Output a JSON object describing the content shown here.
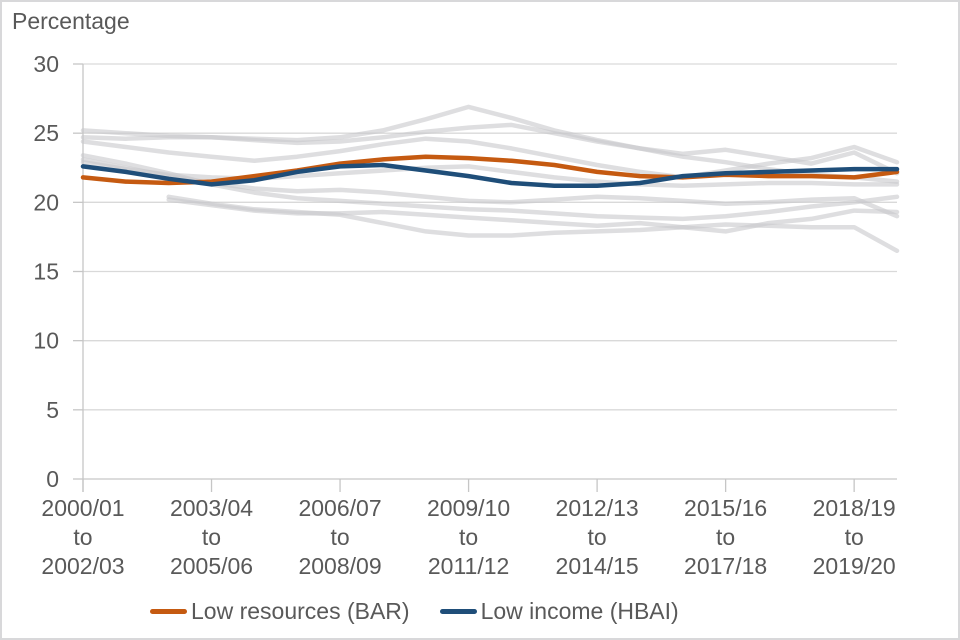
{
  "page": {
    "background_color": "#ffffff",
    "border_color": "#d8d8da"
  },
  "chart_data": {
    "type": "line",
    "title": "Percentage",
    "ylabel": "Percentage",
    "xlabel": "",
    "ylim": [
      0,
      30
    ],
    "yticks": [
      0,
      5,
      10,
      15,
      20,
      25,
      30
    ],
    "grid": "horizontal",
    "axis_color": "#c6c6c6",
    "gridline_color": "#d9d9d9",
    "label_color": "#595959",
    "n_points": 20,
    "x_tick_indices": [
      0,
      3,
      6,
      9,
      12,
      15,
      18
    ],
    "x_tick_labels": [
      [
        "2000/01",
        "to",
        "2002/03"
      ],
      [
        "2003/04",
        "to",
        "2005/06"
      ],
      [
        "2006/07",
        "to",
        "2008/09"
      ],
      [
        "2009/10",
        "to",
        "2011/12"
      ],
      [
        "2012/13",
        "to",
        "2014/15"
      ],
      [
        "2015/16",
        "to",
        "2017/18"
      ],
      [
        "2018/19",
        "to",
        "2019/20"
      ]
    ],
    "series": [
      {
        "name": "background-series-1",
        "color": "#c8c8cb",
        "emphasis": false,
        "values": [
          25.2,
          25.0,
          24.8,
          24.7,
          24.6,
          24.5,
          24.7,
          25.2,
          26.0,
          26.9,
          26.1,
          25.2,
          24.5,
          23.9,
          23.3,
          22.9,
          22.4,
          22.0,
          21.8,
          21.5
        ]
      },
      {
        "name": "background-series-2",
        "color": "#c8c8cb",
        "emphasis": false,
        "values": [
          24.7,
          24.6,
          24.7,
          24.7,
          24.5,
          24.3,
          24.4,
          24.7,
          25.1,
          25.4,
          25.6,
          25.0,
          24.4,
          23.9,
          23.5,
          23.8,
          23.3,
          22.8,
          23.6,
          22.1
        ]
      },
      {
        "name": "background-series-3",
        "color": "#c8c8cb",
        "emphasis": false,
        "values": [
          24.4,
          24.0,
          23.6,
          23.3,
          23.0,
          23.3,
          23.7,
          24.2,
          24.6,
          24.4,
          23.9,
          23.3,
          22.7,
          22.2,
          21.8,
          22.3,
          22.8,
          23.2,
          24.0,
          22.9
        ]
      },
      {
        "name": "background-series-4",
        "color": "#c8c8cb",
        "emphasis": false,
        "values": [
          23.4,
          22.8,
          22.1,
          21.3,
          20.7,
          20.3,
          20.1,
          19.9,
          19.7,
          19.5,
          19.4,
          19.2,
          19.0,
          18.9,
          18.8,
          19.0,
          19.3,
          19.7,
          20.0,
          20.4
        ]
      },
      {
        "name": "background-series-5",
        "color": "#c8c8cb",
        "emphasis": false,
        "values": [
          23.1,
          22.5,
          21.9,
          21.4,
          21.0,
          20.8,
          20.9,
          20.7,
          20.4,
          20.1,
          20.0,
          20.2,
          20.4,
          20.3,
          20.1,
          19.9,
          20.0,
          20.2,
          20.3,
          19.0
        ]
      },
      {
        "name": "background-series-6",
        "color": "#c8c8cb",
        "emphasis": false,
        "values": [
          22.9,
          22.4,
          22.0,
          21.8,
          21.7,
          21.9,
          22.1,
          22.3,
          22.5,
          22.6,
          22.2,
          21.8,
          21.5,
          21.3,
          21.2,
          21.3,
          21.4,
          21.4,
          21.3,
          21.3
        ]
      },
      {
        "name": "background-series-7",
        "color": "#c8c8cb",
        "emphasis": false,
        "values": [
          null,
          null,
          20.4,
          19.9,
          19.5,
          19.3,
          19.1,
          18.5,
          17.9,
          17.6,
          17.6,
          17.8,
          17.9,
          18.0,
          18.2,
          18.4,
          18.3,
          18.2,
          18.2,
          16.5
        ]
      },
      {
        "name": "background-series-8",
        "color": "#c8c8cb",
        "emphasis": false,
        "values": [
          null,
          null,
          20.2,
          19.8,
          19.4,
          19.2,
          19.2,
          19.3,
          19.1,
          18.9,
          18.7,
          18.5,
          18.3,
          18.5,
          18.2,
          17.9,
          18.5,
          18.8,
          19.4,
          19.3
        ]
      },
      {
        "name": "Low resources (BAR)",
        "color": "#C55A11",
        "emphasis": true,
        "values": [
          21.8,
          21.5,
          21.4,
          21.5,
          21.9,
          22.3,
          22.8,
          23.1,
          23.3,
          23.2,
          23.0,
          22.7,
          22.2,
          21.9,
          21.8,
          22.0,
          21.9,
          21.9,
          21.8,
          22.2
        ]
      },
      {
        "name": "Low income (HBAI)",
        "color": "#1F4E79",
        "emphasis": true,
        "values": [
          22.6,
          22.2,
          21.7,
          21.3,
          21.6,
          22.2,
          22.6,
          22.7,
          22.3,
          21.9,
          21.4,
          21.2,
          21.2,
          21.4,
          21.9,
          22.1,
          22.2,
          22.3,
          22.4,
          22.4
        ]
      }
    ],
    "legend": {
      "position": "bottom",
      "entries": [
        {
          "label": "Low resources (BAR)",
          "color": "#C55A11"
        },
        {
          "label": "Low income (HBAI)",
          "color": "#1F4E79"
        }
      ]
    }
  }
}
